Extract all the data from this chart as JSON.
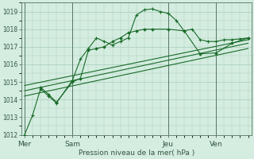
{
  "background_color": "#d4ede0",
  "grid_color": "#aaccbb",
  "line_color": "#1a6b2a",
  "xlabel": "Pression niveau de la mer( hPa )",
  "ylim": [
    1012,
    1019.5
  ],
  "yticks": [
    1012,
    1013,
    1014,
    1015,
    1016,
    1017,
    1018,
    1019
  ],
  "xtick_labels": [
    "Mer",
    "Sam",
    "Jeu",
    "Ven"
  ],
  "xtick_positions": [
    0,
    3,
    9,
    12
  ],
  "vline_positions": [
    0,
    3,
    9,
    12
  ],
  "series": [
    {
      "x": [
        0,
        0.5,
        1.0,
        1.5,
        2.0,
        3.0,
        3.5,
        4.0,
        4.5,
        5.0,
        5.5,
        6.0,
        6.5,
        7.0,
        7.5,
        8.0,
        8.5,
        9.0,
        9.5,
        10.0,
        10.5,
        11.0,
        11.5,
        12.0,
        12.5,
        13.0,
        13.5,
        14.0
      ],
      "y": [
        1012.0,
        1013.1,
        1014.6,
        1014.2,
        1013.8,
        1015.1,
        1016.3,
        1016.9,
        1017.5,
        1017.3,
        1017.1,
        1017.3,
        1017.5,
        1018.8,
        1019.1,
        1019.15,
        1019.0,
        1018.9,
        1018.5,
        1017.9,
        1018.0,
        1017.4,
        1017.3,
        1017.3,
        1017.4,
        1017.4,
        1017.45,
        1017.5
      ],
      "marker": "+"
    },
    {
      "x": [
        1.0,
        1.5,
        2.0,
        3.0,
        3.5,
        4.0,
        4.5,
        5.0,
        5.5,
        6.0,
        6.5,
        7.0,
        7.5,
        8.0,
        9.0,
        10.0,
        11.0,
        12.0,
        13.0,
        14.0
      ],
      "y": [
        1014.7,
        1014.3,
        1013.85,
        1015.0,
        1015.2,
        1016.8,
        1016.9,
        1017.0,
        1017.3,
        1017.5,
        1017.8,
        1017.9,
        1018.0,
        1018.0,
        1018.0,
        1017.9,
        1016.6,
        1016.65,
        1017.2,
        1017.5
      ],
      "marker": "D"
    },
    {
      "x": [
        0,
        14
      ],
      "y": [
        1014.8,
        1017.4
      ]
    },
    {
      "x": [
        0,
        14
      ],
      "y": [
        1014.5,
        1017.2
      ]
    },
    {
      "x": [
        0,
        14
      ],
      "y": [
        1014.2,
        1016.9
      ]
    }
  ]
}
